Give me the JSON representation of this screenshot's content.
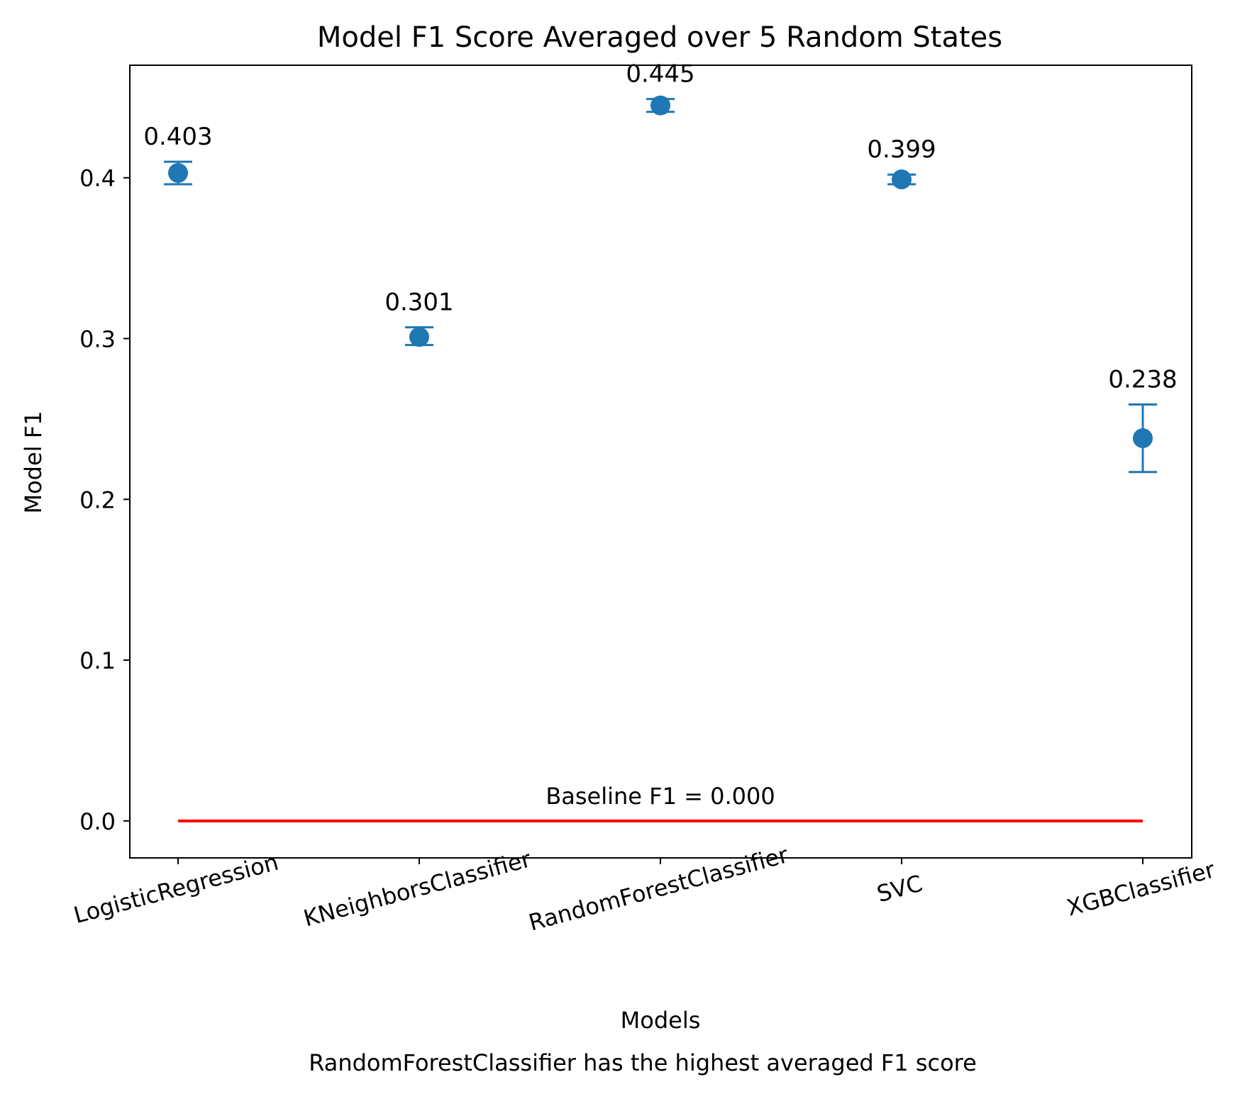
{
  "chart_data": {
    "type": "scatter",
    "title": "Model F1 Score Averaged over 5 Random States",
    "xlabel": "Models",
    "ylabel": "Model F1",
    "caption": "RandomForestClassifier has the highest averaged F1 score",
    "categories": [
      "LogisticRegression",
      "KNeighborsClassifier",
      "RandomForestClassifier",
      "SVC",
      "XGBClassifier"
    ],
    "values": [
      0.403,
      0.301,
      0.445,
      0.399,
      0.238
    ],
    "value_labels": [
      "0.403",
      "0.301",
      "0.445",
      "0.399",
      "0.238"
    ],
    "error_low": [
      0.396,
      0.296,
      0.441,
      0.396,
      0.217
    ],
    "error_high": [
      0.41,
      0.307,
      0.449,
      0.402,
      0.259
    ],
    "ylim": [
      -0.023,
      0.47
    ],
    "yticks": [
      0.0,
      0.1,
      0.2,
      0.3,
      0.4
    ],
    "ytick_labels": [
      "0.0",
      "0.1",
      "0.2",
      "0.3",
      "0.4"
    ],
    "grid": false,
    "baseline": {
      "value": 0.0,
      "label": "Baseline F1 = 0.000",
      "color": "#ff0000"
    },
    "marker_color": "#1f77b4"
  }
}
